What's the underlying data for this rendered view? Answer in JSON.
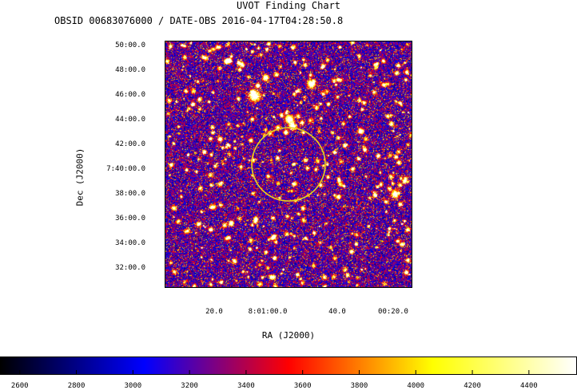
{
  "chart_data": {
    "type": "heatmap",
    "title": "UVOT Finding Chart",
    "subtitle": "OBSID 00683076000 / DATE-OBS 2016-04-17T04:28:50.8",
    "xlabel": "RA (J2000)",
    "ylabel": "Dec (J2000)",
    "ra_ticks": [
      "20.0",
      "8:01:00.0",
      "40.0",
      "00:20.0"
    ],
    "dec_ticks": [
      "50:00.0",
      "48:00.0",
      "46:00.0",
      "44:00.0",
      "42:00.0",
      "7:40:00.0",
      "38:00.0",
      "36:00.0",
      "34:00.0",
      "32:00.0"
    ],
    "colorbar": {
      "ticks": [
        2600,
        2800,
        3000,
        3200,
        3400,
        3600,
        3800,
        4000,
        4200,
        4400
      ],
      "range": [
        2530,
        4570
      ],
      "colors": [
        "#000000",
        "#0000ff",
        "#ff0000",
        "#ffff00",
        "#ffffff"
      ]
    },
    "region_circle": {
      "color": "#e6d21e"
    }
  }
}
